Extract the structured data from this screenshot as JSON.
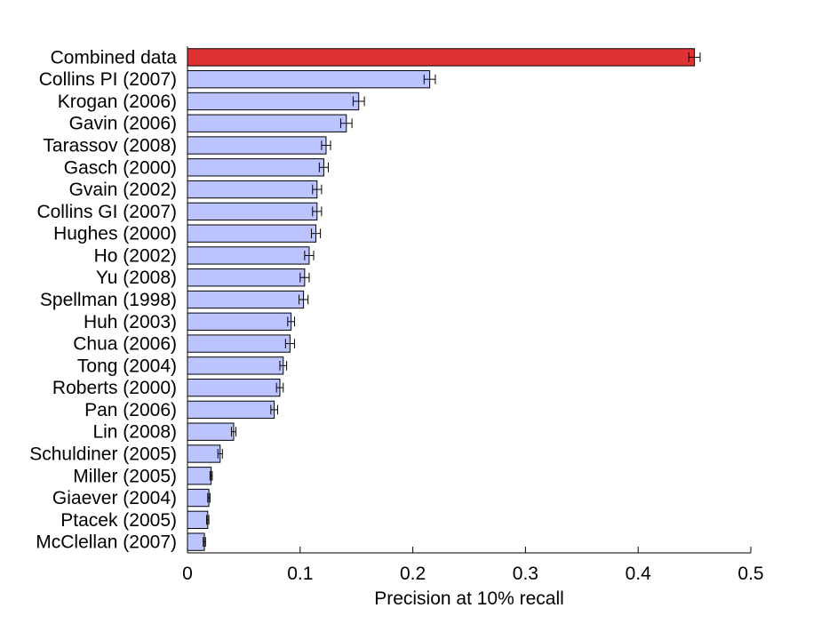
{
  "chart_data": {
    "type": "bar",
    "orientation": "horizontal",
    "xlabel": "Precision at 10% recall",
    "xlim": [
      0,
      0.5
    ],
    "xticks": [
      0,
      0.1,
      0.2,
      0.3,
      0.4,
      0.5
    ],
    "xtick_labels": [
      "0",
      "0.1",
      "0.2",
      "0.3",
      "0.4",
      "0.5"
    ],
    "grid": false,
    "colors": {
      "highlight": "#dd3333",
      "default": "#bcc4ff",
      "edge": "#000000"
    },
    "bars": [
      {
        "label": "Combined data",
        "value": 0.45,
        "error": 0.005
      },
      {
        "label": "Collins PI (2007)",
        "value": 0.215,
        "error": 0.005
      },
      {
        "label": "Krogan (2006)",
        "value": 0.152,
        "error": 0.005
      },
      {
        "label": "Gavin (2006)",
        "value": 0.141,
        "error": 0.005
      },
      {
        "label": "Tarassov (2008)",
        "value": 0.123,
        "error": 0.004
      },
      {
        "label": "Gasch (2000)",
        "value": 0.121,
        "error": 0.004
      },
      {
        "label": "Gvain (2002)",
        "value": 0.115,
        "error": 0.004
      },
      {
        "label": "Collins GI (2007)",
        "value": 0.115,
        "error": 0.004
      },
      {
        "label": "Hughes (2000)",
        "value": 0.114,
        "error": 0.004
      },
      {
        "label": "Ho (2002)",
        "value": 0.108,
        "error": 0.004
      },
      {
        "label": "Yu (2008)",
        "value": 0.104,
        "error": 0.004
      },
      {
        "label": "Spellman (1998)",
        "value": 0.103,
        "error": 0.004
      },
      {
        "label": "Huh (2003)",
        "value": 0.092,
        "error": 0.003
      },
      {
        "label": "Chua (2006)",
        "value": 0.091,
        "error": 0.004
      },
      {
        "label": "Tong (2004)",
        "value": 0.085,
        "error": 0.003
      },
      {
        "label": "Roberts (2000)",
        "value": 0.082,
        "error": 0.003
      },
      {
        "label": "Pan (2006)",
        "value": 0.077,
        "error": 0.003
      },
      {
        "label": "Lin (2008)",
        "value": 0.041,
        "error": 0.002
      },
      {
        "label": "Schuldiner (2005)",
        "value": 0.029,
        "error": 0.002
      },
      {
        "label": "Miller (2005)",
        "value": 0.021,
        "error": 0.001
      },
      {
        "label": "Giaever (2004)",
        "value": 0.019,
        "error": 0.001
      },
      {
        "label": "Ptacek (2005)",
        "value": 0.018,
        "error": 0.001
      },
      {
        "label": "McClellan (2007)",
        "value": 0.015,
        "error": 0.001
      }
    ]
  }
}
